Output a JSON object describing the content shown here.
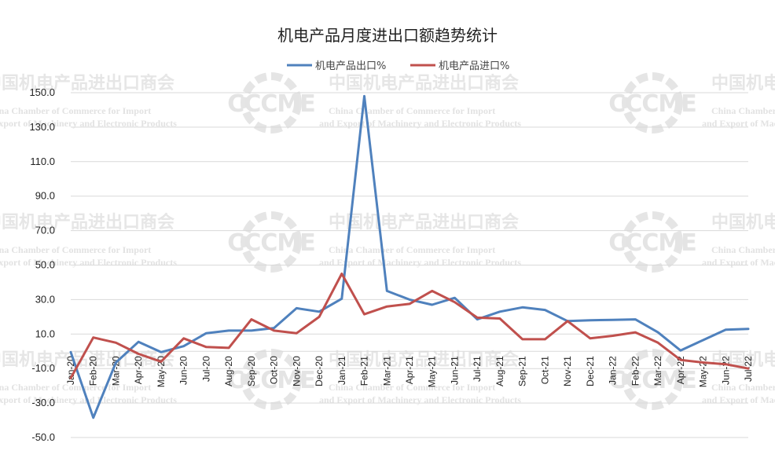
{
  "chart_data": {
    "type": "line",
    "title": "机电产品月度进出口额趋势统计",
    "legend_position": "top",
    "grid": true,
    "ylim": [
      -50,
      150
    ],
    "yticks": [
      "-50.0",
      "-30.0",
      "-10.0",
      "10.0",
      "30.0",
      "50.0",
      "70.0",
      "90.0",
      "110.0",
      "130.0",
      "150.0"
    ],
    "categories": [
      "Jan-20",
      "Feb-20",
      "Mar-20",
      "Apr-20",
      "May-20",
      "Jun-20",
      "Jul-20",
      "Aug-20",
      "Sep-20",
      "Oct-20",
      "Nov-20",
      "Dec-20",
      "Jan-21",
      "Feb-21",
      "Mar-21",
      "Apr-21",
      "May-21",
      "Jun-21",
      "Jul-21",
      "Aug-21",
      "Sep-21",
      "Oct-21",
      "Nov-21",
      "Dec-21",
      "Jan-22",
      "Feb-22",
      "Mar-22",
      "Apr-22",
      "May-22",
      "Jun-22",
      "Jul-22"
    ],
    "series": [
      {
        "name": "机电产品出口%",
        "color": "#4f81bd",
        "values": [
          -0.5,
          -38.5,
          -6.5,
          5.5,
          -0.5,
          3.0,
          10.5,
          12.0,
          12.0,
          13.5,
          25.0,
          23.0,
          30.5,
          148.0,
          35.0,
          30.0,
          27.0,
          31.0,
          18.5,
          23.0,
          25.5,
          24.0,
          17.5,
          18.0,
          18.2,
          18.5,
          11.0,
          0.5,
          6.5,
          12.5,
          13.0
        ]
      },
      {
        "name": "机电产品进口%",
        "color": "#c0504d",
        "values": [
          -15.5,
          8.0,
          5.0,
          -1.5,
          -6.0,
          7.5,
          2.5,
          2.0,
          18.5,
          12.0,
          10.5,
          20.0,
          45.0,
          21.5,
          26.0,
          27.5,
          35.0,
          28.5,
          19.5,
          19.0,
          7.0,
          7.0,
          17.5,
          7.5,
          9.0,
          11.0,
          5.0,
          -5.0,
          -6.5,
          -7.5,
          -10.0
        ]
      }
    ]
  },
  "watermark": {
    "cn": "中国机电产品进出口商会",
    "en_line1": "China Chamber of Commerce for Import",
    "en_line2": "and Export of Machinery and Electronic Products",
    "logo": "CCCME",
    "color": "#e5e5e5"
  }
}
